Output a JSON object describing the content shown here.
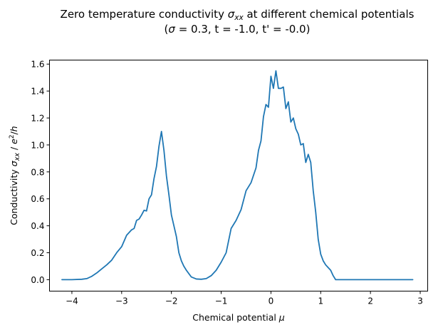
{
  "chart_data": {
    "type": "line",
    "title_line1_prefix": "Zero temperature conductivity ",
    "title_sigma": "σ",
    "title_sub": "xx",
    "title_line1_suffix": " at different chemical potentials",
    "title_line2_open": "(",
    "title_line2_sigma": "σ",
    "title_line2_rest": " = 0.3, t = -1.0, t' = -0.0)",
    "xlabel_prefix": "Chemical potential ",
    "xlabel_mu": "μ",
    "ylabel_prefix": "Conductivity ",
    "ylabel_sigma": "σ",
    "ylabel_sub": "xx",
    "ylabel_mid": " / ",
    "ylabel_e": "e",
    "ylabel_sup": "2",
    "ylabel_slash": "/",
    "ylabel_h": "h",
    "xlim": [
      -4.45,
      3.15
    ],
    "ylim": [
      -0.085,
      1.63
    ],
    "xticks": [
      -4,
      -3,
      -2,
      -1,
      0,
      1,
      2,
      3
    ],
    "xtick_labels": [
      "−4",
      "−3",
      "−2",
      "−1",
      "0",
      "1",
      "2",
      "3"
    ],
    "yticks": [
      0.0,
      0.2,
      0.4,
      0.6,
      0.8,
      1.0,
      1.2,
      1.4,
      1.6
    ],
    "ytick_labels": [
      "0.0",
      "0.2",
      "0.4",
      "0.6",
      "0.8",
      "1.0",
      "1.2",
      "1.4",
      "1.6"
    ],
    "grid": false,
    "line_color": "#1f77b4",
    "series": [
      {
        "x": [
          -4.2,
          -4.0,
          -3.8,
          -3.7,
          -3.6,
          -3.5,
          -3.4,
          -3.3,
          -3.2,
          -3.1,
          -3.0,
          -2.9,
          -2.8,
          -2.75,
          -2.7,
          -2.65,
          -2.6,
          -2.55,
          -2.5,
          -2.45,
          -2.4,
          -2.35,
          -2.3,
          -2.25,
          -2.2,
          -2.15,
          -2.1,
          -2.05,
          -2.0,
          -1.95,
          -1.9,
          -1.85,
          -1.8,
          -1.75,
          -1.7,
          -1.6,
          -1.5,
          -1.4,
          -1.3,
          -1.2,
          -1.1,
          -1.0,
          -0.9,
          -0.8,
          -0.7,
          -0.6,
          -0.5,
          -0.4,
          -0.3,
          -0.25,
          -0.2,
          -0.15,
          -0.1,
          -0.05,
          0.0,
          0.05,
          0.1,
          0.15,
          0.2,
          0.25,
          0.3,
          0.35,
          0.4,
          0.45,
          0.5,
          0.55,
          0.6,
          0.65,
          0.7,
          0.75,
          0.8,
          0.85,
          0.9,
          0.95,
          1.0,
          1.05,
          1.1,
          1.15,
          1.2,
          1.25,
          1.3,
          1.35,
          1.4,
          1.45,
          1.5,
          1.55,
          1.6,
          1.65,
          1.7,
          1.75,
          1.8,
          1.85,
          1.9,
          1.95,
          2.0,
          2.1,
          2.2,
          2.3,
          2.4,
          2.5,
          2.6,
          2.7,
          2.85
        ],
        "y": [
          0.0,
          0.0,
          0.003,
          0.008,
          0.025,
          0.05,
          0.08,
          0.11,
          0.145,
          0.2,
          0.245,
          0.33,
          0.37,
          0.38,
          0.44,
          0.45,
          0.48,
          0.515,
          0.51,
          0.6,
          0.63,
          0.75,
          0.84,
          0.99,
          1.1,
          0.96,
          0.77,
          0.63,
          0.48,
          0.4,
          0.32,
          0.2,
          0.14,
          0.1,
          0.07,
          0.02,
          0.005,
          0.003,
          0.008,
          0.03,
          0.07,
          0.13,
          0.2,
          0.38,
          0.44,
          0.52,
          0.66,
          0.72,
          0.83,
          0.96,
          1.03,
          1.21,
          1.3,
          1.28,
          1.51,
          1.42,
          1.55,
          1.42,
          1.42,
          1.43,
          1.27,
          1.32,
          1.17,
          1.2,
          1.12,
          1.08,
          1.0,
          1.01,
          0.87,
          0.93,
          0.87,
          0.66,
          0.5,
          0.3,
          0.19,
          0.14,
          0.11,
          0.09,
          0.07,
          0.03,
          0.0,
          0.0,
          0.0,
          0.0,
          0.0,
          0.0,
          0.0,
          0.0,
          0.0,
          0.0,
          0.0,
          0.0,
          0.0,
          0.0,
          0.0,
          0.0,
          0.0,
          0.0,
          0.0,
          0.0,
          0.0,
          0.0,
          0.0
        ]
      }
    ]
  }
}
